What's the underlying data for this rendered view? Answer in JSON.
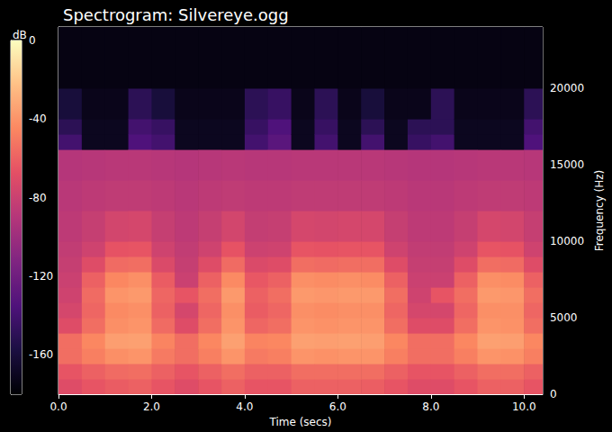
{
  "chart_data": {
    "type": "heatmap",
    "title": "Spectrogram: Silvereye.ogg",
    "x_label": "Time (secs)",
    "y_label": "Frequency (Hz)",
    "xlim": [
      0,
      10.4
    ],
    "xticks": [
      {
        "value": 0,
        "label": "0.0"
      },
      {
        "value": 2,
        "label": "2.0"
      },
      {
        "value": 4,
        "label": "4.0"
      },
      {
        "value": 6,
        "label": "6.0"
      },
      {
        "value": 8,
        "label": "8.0"
      },
      {
        "value": 10,
        "label": "10.0"
      }
    ],
    "ylim": [
      0,
      24000
    ],
    "yticks": [
      0,
      5000,
      10000,
      15000,
      20000
    ],
    "grid": false,
    "x_edges": [
      0,
      0.5,
      1.0,
      1.5,
      2.0,
      2.5,
      3.0,
      3.5,
      4.0,
      4.5,
      5.0,
      5.5,
      6.0,
      6.5,
      7.0,
      7.5,
      8.0,
      8.5,
      9.0,
      9.5,
      10.0,
      10.4
    ],
    "y_edges": [
      0,
      1000,
      2000,
      3000,
      4000,
      5000,
      6000,
      7000,
      8000,
      9000,
      10000,
      12000,
      14000,
      16000,
      17000,
      18000,
      20000,
      24000
    ],
    "cells": [
      [
        -70,
        -65,
        -55,
        -55,
        -70,
        -75,
        -78,
        -80,
        -82,
        -84,
        -86,
        -88,
        -90,
        -140,
        -150,
        -160,
        -175
      ],
      [
        -65,
        -60,
        -48,
        -45,
        -55,
        -58,
        -56,
        -60,
        -70,
        -78,
        -82,
        -86,
        -89,
        -170,
        -170,
        -172,
        -175
      ],
      [
        -62,
        -56,
        -42,
        -36,
        -42,
        -44,
        -40,
        -45,
        -56,
        -66,
        -76,
        -85,
        -88,
        -170,
        -170,
        -172,
        -175
      ],
      [
        -60,
        -55,
        -40,
        -35,
        -40,
        -42,
        -38,
        -42,
        -55,
        -65,
        -75,
        -85,
        -88,
        -135,
        -140,
        -150,
        -175
      ],
      [
        -65,
        -60,
        -50,
        -46,
        -56,
        -60,
        -58,
        -62,
        -72,
        -78,
        -82,
        -86,
        -89,
        -140,
        -145,
        -160,
        -175
      ],
      [
        -70,
        -65,
        -55,
        -55,
        -70,
        -75,
        -65,
        -80,
        -82,
        -84,
        -86,
        -88,
        -90,
        -170,
        -170,
        -172,
        -175
      ],
      [
        -65,
        -60,
        -48,
        -45,
        -55,
        -58,
        -55,
        -60,
        -70,
        -78,
        -82,
        -86,
        -89,
        -170,
        -170,
        -172,
        -175
      ],
      [
        -60,
        -55,
        -40,
        -35,
        -40,
        -42,
        -38,
        -44,
        -56,
        -66,
        -76,
        -85,
        -88,
        -170,
        -170,
        -172,
        -175
      ],
      [
        -65,
        -60,
        -50,
        -46,
        -58,
        -62,
        -60,
        -64,
        -72,
        -79,
        -83,
        -86,
        -89,
        -140,
        -145,
        -150,
        -175
      ],
      [
        -65,
        -60,
        -48,
        -45,
        -55,
        -58,
        -55,
        -60,
        -70,
        -78,
        -82,
        -86,
        -89,
        -130,
        -135,
        -145,
        -175
      ],
      [
        -60,
        -55,
        -40,
        -35,
        -40,
        -42,
        -38,
        -42,
        -55,
        -65,
        -75,
        -85,
        -88,
        -170,
        -170,
        -172,
        -175
      ],
      [
        -60,
        -55,
        -41,
        -36,
        -41,
        -43,
        -39,
        -43,
        -56,
        -66,
        -76,
        -85,
        -88,
        -140,
        -145,
        -150,
        -175
      ],
      [
        -60,
        -55,
        -40,
        -35,
        -40,
        -42,
        -38,
        -42,
        -55,
        -65,
        -75,
        -85,
        -88,
        -170,
        -170,
        -172,
        -175
      ],
      [
        -61,
        -55,
        -40,
        -36,
        -40,
        -42,
        -38,
        -43,
        -55,
        -65,
        -75,
        -85,
        -88,
        -140,
        -150,
        -160,
        -175
      ],
      [
        -65,
        -60,
        -48,
        -45,
        -55,
        -58,
        -55,
        -60,
        -70,
        -78,
        -82,
        -86,
        -89,
        -170,
        -170,
        -172,
        -175
      ],
      [
        -70,
        -65,
        -55,
        -55,
        -70,
        -75,
        -78,
        -80,
        -82,
        -84,
        -86,
        -88,
        -90,
        -145,
        -150,
        -172,
        -175
      ],
      [
        -70,
        -65,
        -55,
        -55,
        -70,
        -75,
        -65,
        -80,
        -82,
        -84,
        -86,
        -88,
        -90,
        -140,
        -150,
        -150,
        -175
      ],
      [
        -65,
        -60,
        -48,
        -45,
        -55,
        -58,
        -55,
        -60,
        -70,
        -78,
        -82,
        -86,
        -89,
        -170,
        -170,
        -172,
        -175
      ],
      [
        -60,
        -55,
        -40,
        -35,
        -40,
        -42,
        -38,
        -42,
        -55,
        -65,
        -75,
        -85,
        -88,
        -170,
        -170,
        -172,
        -175
      ],
      [
        -60,
        -55,
        -41,
        -36,
        -41,
        -42,
        -39,
        -43,
        -56,
        -66,
        -76,
        -85,
        -88,
        -170,
        -170,
        -172,
        -175
      ],
      [
        -65,
        -60,
        -48,
        -45,
        -55,
        -58,
        -55,
        -60,
        -70,
        -78,
        -82,
        -86,
        -89,
        -135,
        -140,
        -150,
        -175
      ]
    ],
    "colorbar": {
      "label": "dB",
      "lim": [
        -180,
        0
      ],
      "ticks": [
        0,
        -40,
        -80,
        -120,
        -160
      ]
    }
  }
}
